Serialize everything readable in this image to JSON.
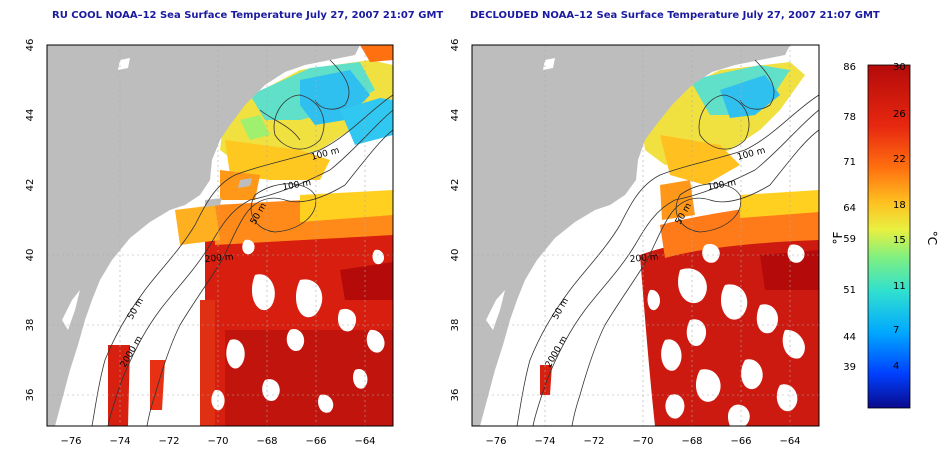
{
  "maps": [
    {
      "id": "left",
      "title": "RU COOL NOAA–12 Sea Surface Temperature July 27, 2007 21:07 GMT",
      "contour_labels": [
        "100 m",
        "100 m",
        "50 m",
        "200 m",
        "50 m",
        "2000 m"
      ]
    },
    {
      "id": "right",
      "title": "DECLOUDED NOAA–12 Sea Surface Temperature July 27, 2007 21:07 GMT",
      "contour_labels": [
        "100 m",
        "100 m",
        "50 m",
        "200 m",
        "50 m",
        "2000 m"
      ]
    }
  ],
  "axes": {
    "x_ticks": [
      "−76",
      "−74",
      "−72",
      "−70",
      "−68",
      "−66",
      "−64"
    ],
    "y_ticks": [
      "46",
      "44",
      "42",
      "40",
      "38",
      "36"
    ]
  },
  "colorbar": {
    "fahrenheit_label": "°F",
    "celsius_label": "°C",
    "fahrenheit_ticks": [
      "86",
      "78",
      "71",
      "64",
      "59",
      "51",
      "44",
      "39"
    ],
    "celsius_ticks": [
      "30",
      "26",
      "22",
      "18",
      "15",
      "11",
      "7",
      "4"
    ],
    "colors": [
      "#0a0a8c",
      "#0050ff",
      "#00b4ff",
      "#30e0d0",
      "#80f080",
      "#e8f040",
      "#ffc020",
      "#ff7010",
      "#e82810",
      "#b40a0a"
    ]
  },
  "colors": {
    "land": "#bdbdbd",
    "cloud": "#ffffff",
    "title": "#1a1aa0"
  }
}
